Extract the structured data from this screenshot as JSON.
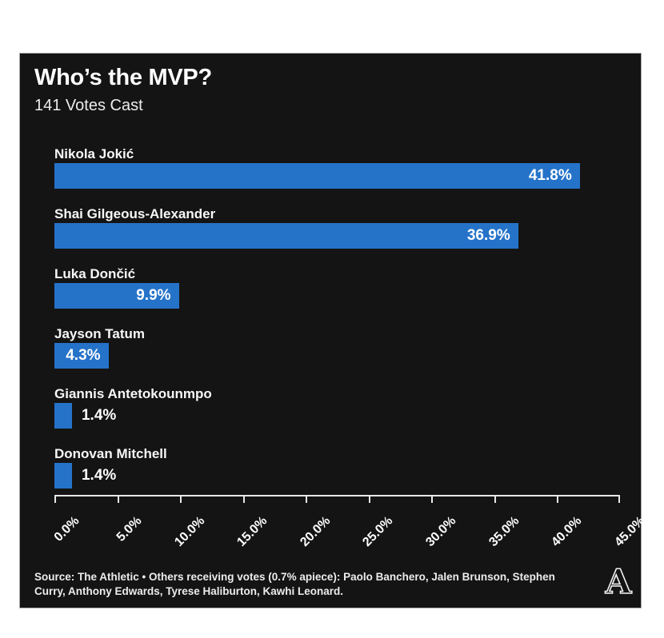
{
  "header": {
    "title": "Who’s the MVP?",
    "subtitle": "141 Votes Cast"
  },
  "chart_data": {
    "type": "bar",
    "orientation": "horizontal",
    "title": "Who’s the MVP?",
    "subtitle": "141 Votes Cast",
    "categories": [
      "Nikola Jokić",
      "Shai Gilgeous-Alexander",
      "Luka Dončić",
      "Jayson Tatum",
      "Giannis Antetokounmpo",
      "Donovan Mitchell"
    ],
    "values": [
      41.8,
      36.9,
      9.9,
      4.3,
      1.4,
      1.4
    ],
    "value_labels": [
      "41.8%",
      "36.9%",
      "9.9%",
      "4.3%",
      "1.4%",
      "1.4%"
    ],
    "x_ticks": [
      "0.0%",
      "5.0%",
      "10.0%",
      "15.0%",
      "20.0%",
      "25.0%",
      "30.0%",
      "35.0%",
      "40.0%",
      "45.0%"
    ],
    "xlim": [
      0,
      45
    ],
    "bar_color": "#2573C9",
    "grid": false,
    "legend": false
  },
  "footer": {
    "source_note": "Source: The Athletic • Others receiving votes (0.7% apiece): Paolo Banchero, Jalen Brunson, Stephen Curry, Anthony Edwards, Tyrese Haliburton, Kawhi Leonard.",
    "logo_letter": "A"
  },
  "colors": {
    "page_bg": "#ffffff",
    "card_bg": "#141414",
    "text": "#ffffff",
    "accent_blue": "#2573C9",
    "axis_line": "#e8e8e8"
  }
}
